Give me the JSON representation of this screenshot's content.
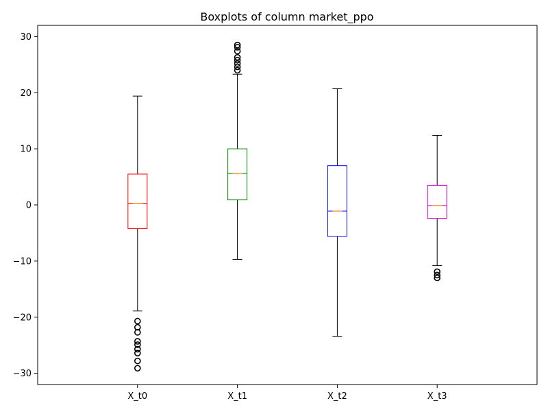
{
  "chart_data": {
    "type": "boxplot",
    "title": "Boxplots of column market_ppo",
    "xlabel": "",
    "ylabel": "",
    "ylim": [
      -32,
      32
    ],
    "yticks": [
      -30,
      -20,
      -10,
      0,
      10,
      20,
      30
    ],
    "grid": false,
    "notched": true,
    "categories": [
      "X_t0",
      "X_t1",
      "X_t2",
      "X_t3"
    ],
    "series": [
      {
        "category": "X_t0",
        "color": "#ff0000",
        "whisker_low": -18.9,
        "q1": -4.2,
        "median": 0.3,
        "q3": 5.5,
        "whisker_high": 19.4,
        "outliers": [
          -20.7,
          -21.8,
          -22.7,
          -24.3,
          -24.9,
          -25.7,
          -26.4,
          -27.8,
          -29.1
        ]
      },
      {
        "category": "X_t1",
        "color": "#008000",
        "whisker_low": -9.7,
        "q1": 0.9,
        "median": 5.6,
        "q3": 10.0,
        "whisker_high": 23.3,
        "outliers": [
          24.0,
          24.6,
          25.2,
          25.8,
          26.3,
          27.4,
          28.1,
          28.5
        ]
      },
      {
        "category": "X_t2",
        "color": "#0000ff",
        "whisker_low": -23.4,
        "q1": -5.6,
        "median": -1.1,
        "q3": 7.0,
        "whisker_high": 20.7,
        "outliers": []
      },
      {
        "category": "X_t3",
        "color": "#bf00bf",
        "whisker_low": -10.8,
        "q1": -2.4,
        "median": -0.1,
        "q3": 3.5,
        "whisker_high": 12.4,
        "outliers": [
          -11.9,
          -12.5,
          -13.0
        ]
      }
    ]
  }
}
